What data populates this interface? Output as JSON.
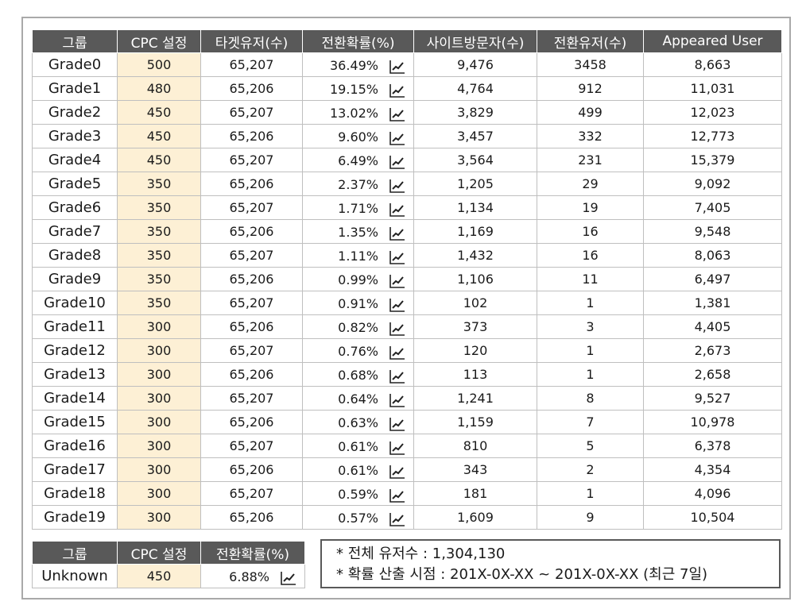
{
  "main_table": {
    "headers": [
      "그룹",
      "CPC 설정",
      "타겟유저(수)",
      "전환확률(%)",
      "사이트방문자(수)",
      "전환유저(수)",
      "Appeared User"
    ],
    "rows": [
      [
        "Grade0",
        "500",
        "65,207",
        "36.49%",
        "9,476",
        "3458",
        "8,663"
      ],
      [
        "Grade1",
        "480",
        "65,206",
        "19.15%",
        "4,764",
        "912",
        "11,031"
      ],
      [
        "Grade2",
        "450",
        "65,207",
        "13.02%",
        "3,829",
        "499",
        "12,023"
      ],
      [
        "Grade3",
        "450",
        "65,206",
        "9.60%",
        "3,457",
        "332",
        "12,773"
      ],
      [
        "Grade4",
        "450",
        "65,207",
        "6.49%",
        "3,564",
        "231",
        "15,379"
      ],
      [
        "Grade5",
        "350",
        "65,206",
        "2.37%",
        "1,205",
        "29",
        "9,092"
      ],
      [
        "Grade6",
        "350",
        "65,207",
        "1.71%",
        "1,134",
        "19",
        "7,405"
      ],
      [
        "Grade7",
        "350",
        "65,206",
        "1.35%",
        "1,169",
        "16",
        "9,548"
      ],
      [
        "Grade8",
        "350",
        "65,207",
        "1.11%",
        "1,432",
        "16",
        "8,063"
      ],
      [
        "Grade9",
        "350",
        "65,206",
        "0.99%",
        "1,106",
        "11",
        "6,497"
      ],
      [
        "Grade10",
        "350",
        "65,207",
        "0.91%",
        "102",
        "1",
        "1,381"
      ],
      [
        "Grade11",
        "300",
        "65,206",
        "0.82%",
        "373",
        "3",
        "4,405"
      ],
      [
        "Grade12",
        "300",
        "65,207",
        "0.76%",
        "120",
        "1",
        "2,673"
      ],
      [
        "Grade13",
        "300",
        "65,206",
        "0.68%",
        "113",
        "1",
        "2,658"
      ],
      [
        "Grade14",
        "300",
        "65,207",
        "0.64%",
        "1,241",
        "8",
        "9,527"
      ],
      [
        "Grade15",
        "300",
        "65,206",
        "0.63%",
        "1,159",
        "7",
        "10,978"
      ],
      [
        "Grade16",
        "300",
        "65,207",
        "0.61%",
        "810",
        "5",
        "6,378"
      ],
      [
        "Grade17",
        "300",
        "65,206",
        "0.61%",
        "343",
        "2",
        "4,354"
      ],
      [
        "Grade18",
        "300",
        "65,207",
        "0.59%",
        "181",
        "1",
        "4,096"
      ],
      [
        "Grade19",
        "300",
        "65,206",
        "0.57%",
        "1,609",
        "9",
        "10,504"
      ]
    ]
  },
  "unknown_table": {
    "headers": [
      "그룹",
      "CPC 설정",
      "전환확률(%)"
    ],
    "row": [
      "Unknown",
      "450",
      "6.88%"
    ]
  },
  "notes": [
    "* 전체 유저수 : 1,304,130",
    "* 확률 산출 시점 : 201X-0X-XX ~ 201X-0X-XX (최근 7일)"
  ],
  "icons": {
    "rate_chart": "line-chart-icon"
  },
  "colors": {
    "header_bg": "#595959",
    "cpc_bg": "#fdf0d5",
    "border": "#bfbfbf"
  }
}
